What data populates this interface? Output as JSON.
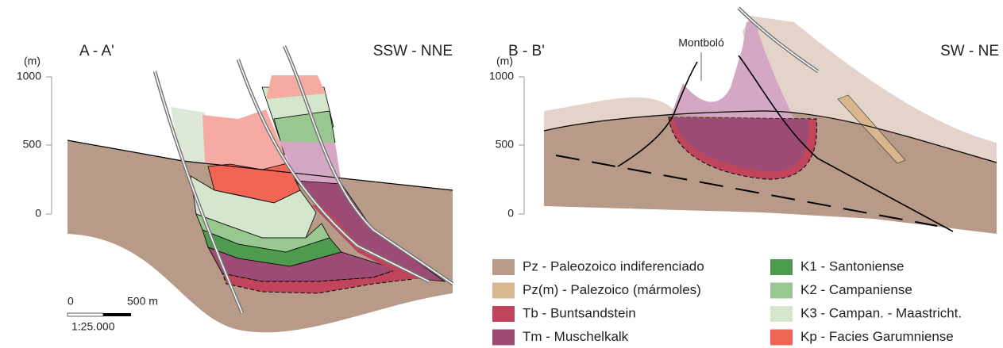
{
  "sections": [
    {
      "title": "A - A'",
      "direction": "SSW - NNE",
      "unit": "(m)",
      "ticks": [
        "1000",
        "500",
        "0"
      ]
    },
    {
      "title": "B - B'",
      "direction": "SW - NE",
      "unit": "(m)",
      "ticks": [
        "1000",
        "500",
        "0"
      ],
      "annotation": "Montboló"
    }
  ],
  "scale_bar": {
    "start": "0",
    "end": "500 m",
    "ratio": "1:25.000"
  },
  "legend": [
    {
      "label": "Pz - Paleozoico indiferenciado",
      "color": "#b89a89"
    },
    {
      "label": "Pz(m) - Palezoico (mármoles)",
      "color": "#d9b78e"
    },
    {
      "label": "Tb - Buntsandstein",
      "color": "#c0445b"
    },
    {
      "label": "Tm - Muschelkalk",
      "color": "#9c4c74"
    },
    {
      "label": "K1 - Santoniense",
      "color": "#4e9a4e"
    },
    {
      "label": "K2 - Campaniense",
      "color": "#98c890"
    },
    {
      "label": "K3 - Campan. - Maastricht.",
      "color": "#d4e6cc"
    },
    {
      "label": "Kp - Facies Garumniense",
      "color": "#f26454"
    }
  ]
}
